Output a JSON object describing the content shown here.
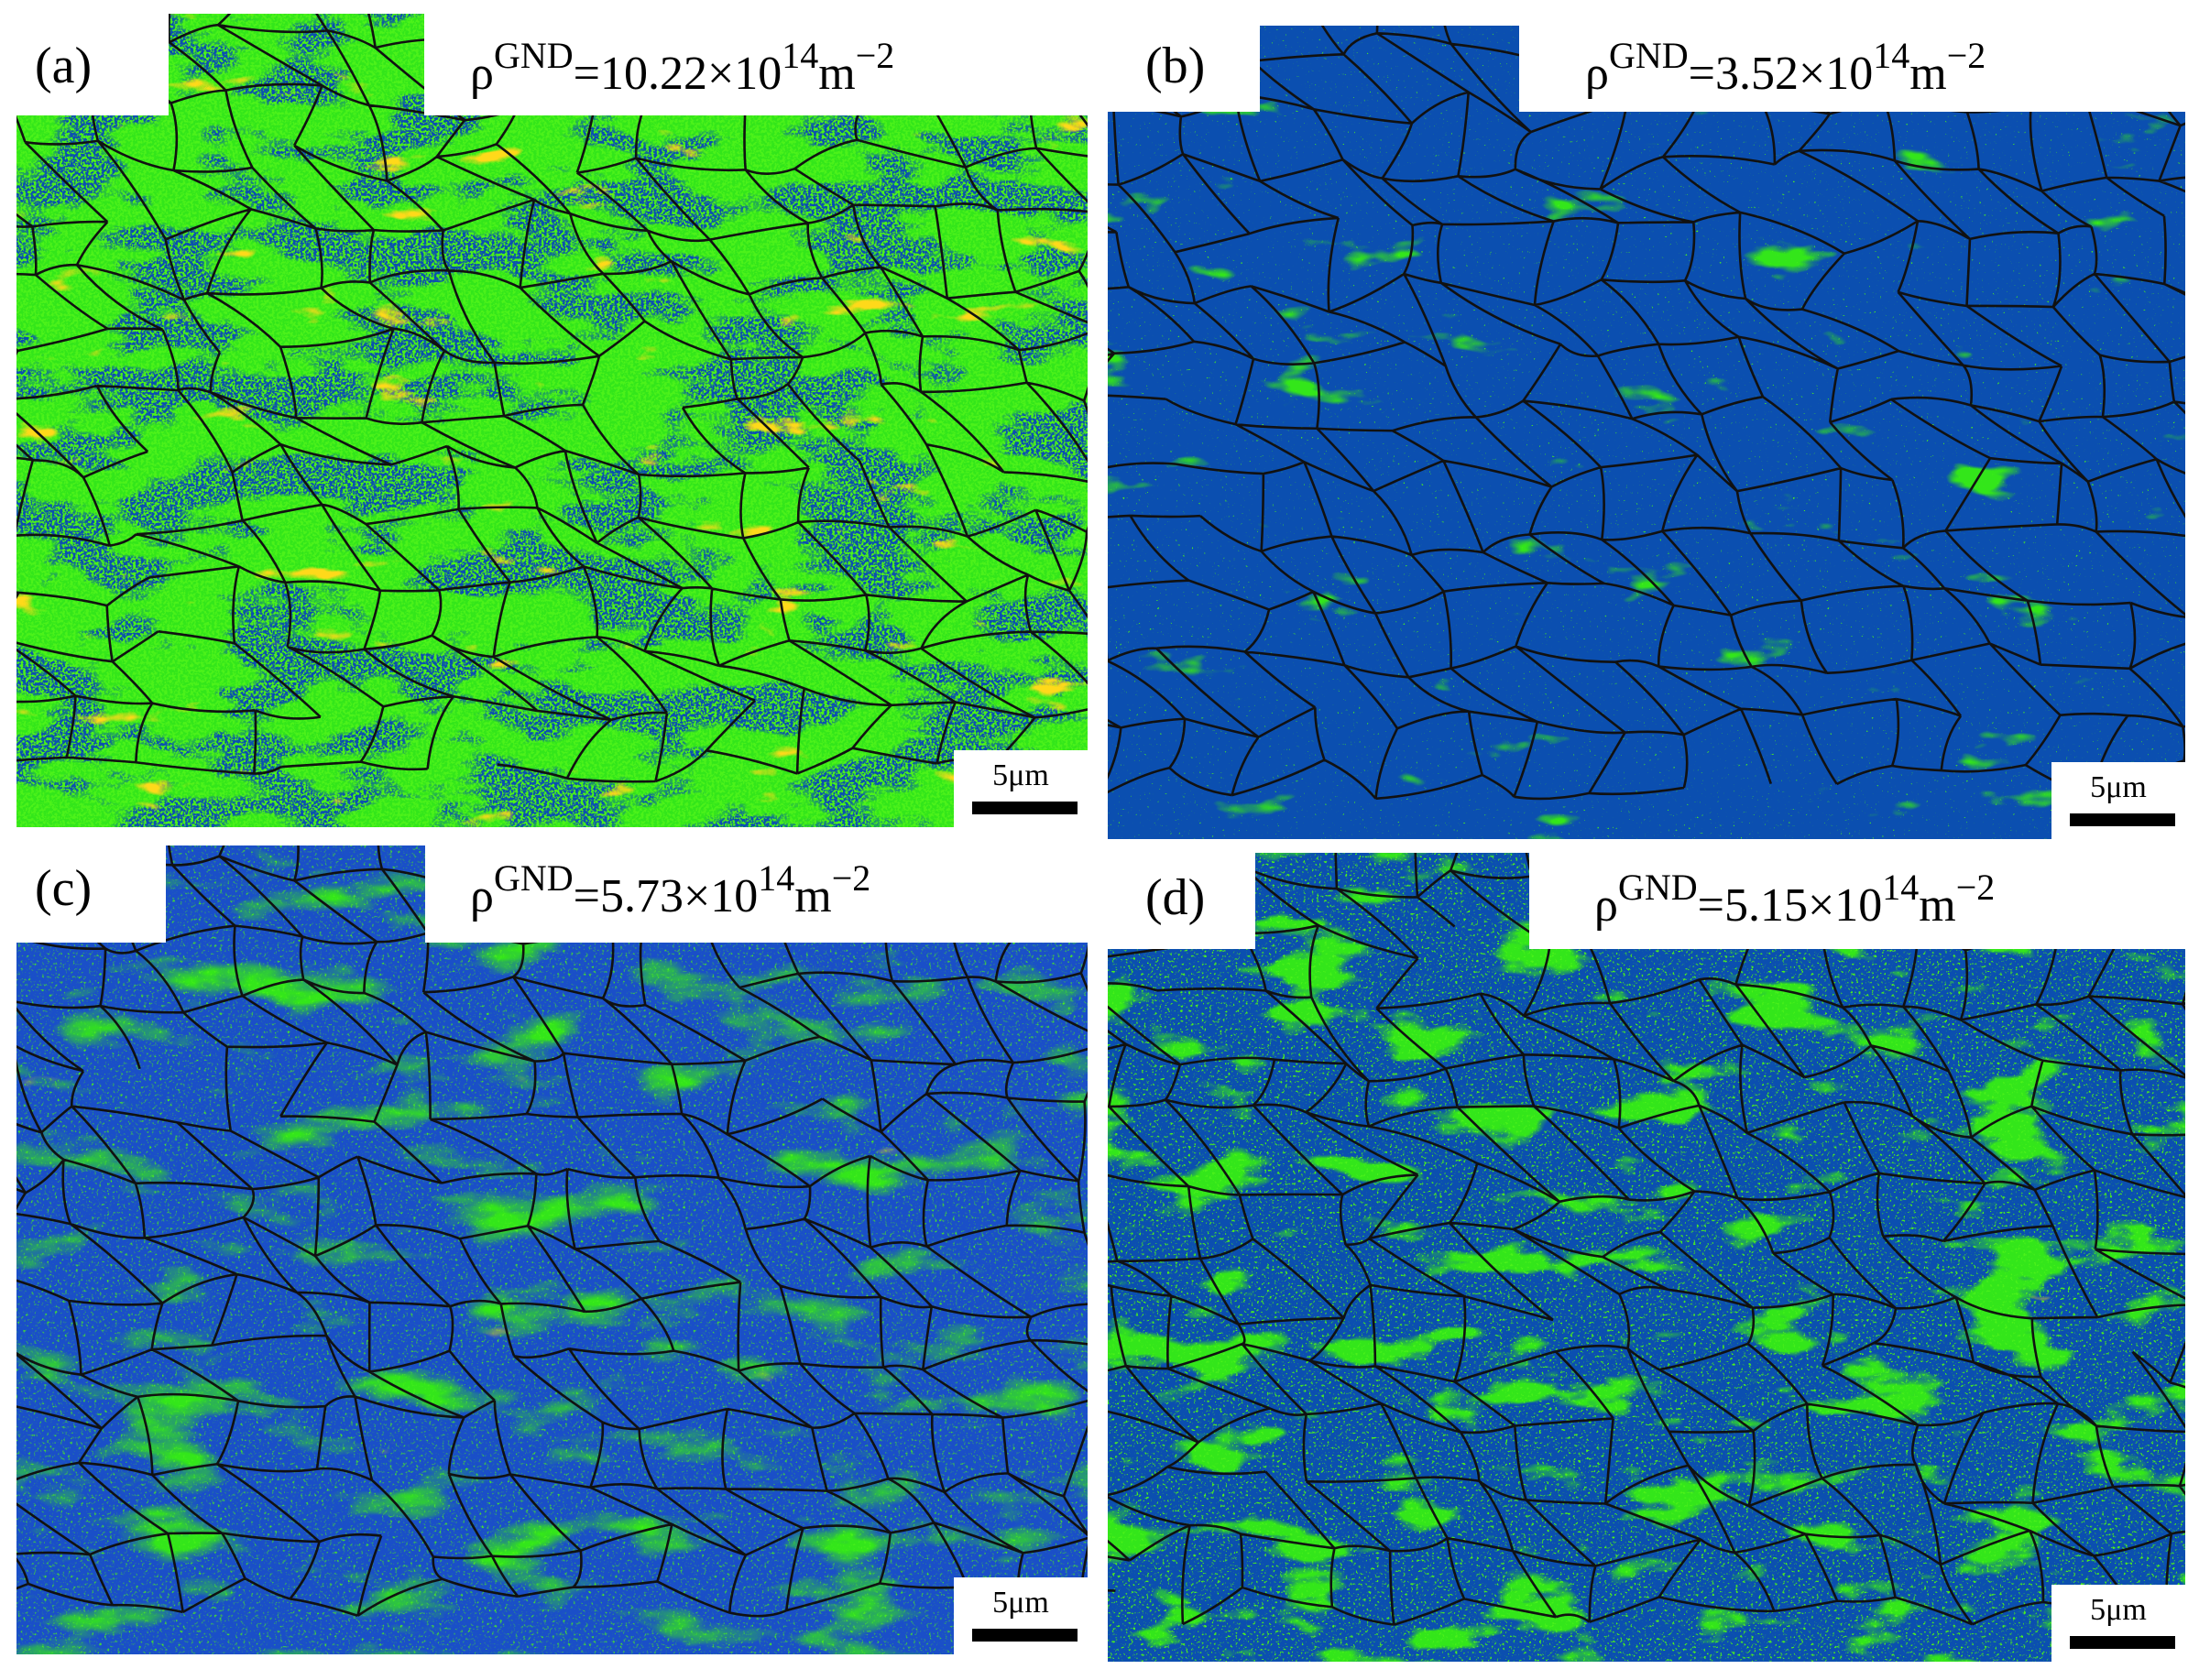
{
  "panels": [
    {
      "label": "(a)",
      "density": {
        "symbol": "ρ",
        "superscript": "GND",
        "value": "=10.22×10",
        "exponent": "14",
        "unit": "m",
        "unit_exponent": "−2"
      },
      "scale_bar": "5μm"
    },
    {
      "label": "(b)",
      "density": {
        "symbol": "ρ",
        "superscript": "GND",
        "value": "=3.52×10",
        "exponent": "14",
        "unit": "m",
        "unit_exponent": "−2"
      },
      "scale_bar": "5μm"
    },
    {
      "label": "(c)",
      "density": {
        "symbol": "ρ",
        "superscript": "GND",
        "value": "=5.73×10",
        "exponent": "14",
        "unit": "m",
        "unit_exponent": "−2"
      },
      "scale_bar": "5μm"
    },
    {
      "label": "(d)",
      "density": {
        "symbol": "ρ",
        "superscript": "GND",
        "value": "=5.15×10",
        "exponent": "14",
        "unit": "m",
        "unit_exponent": "−2"
      },
      "scale_bar": "5μm"
    }
  ]
}
